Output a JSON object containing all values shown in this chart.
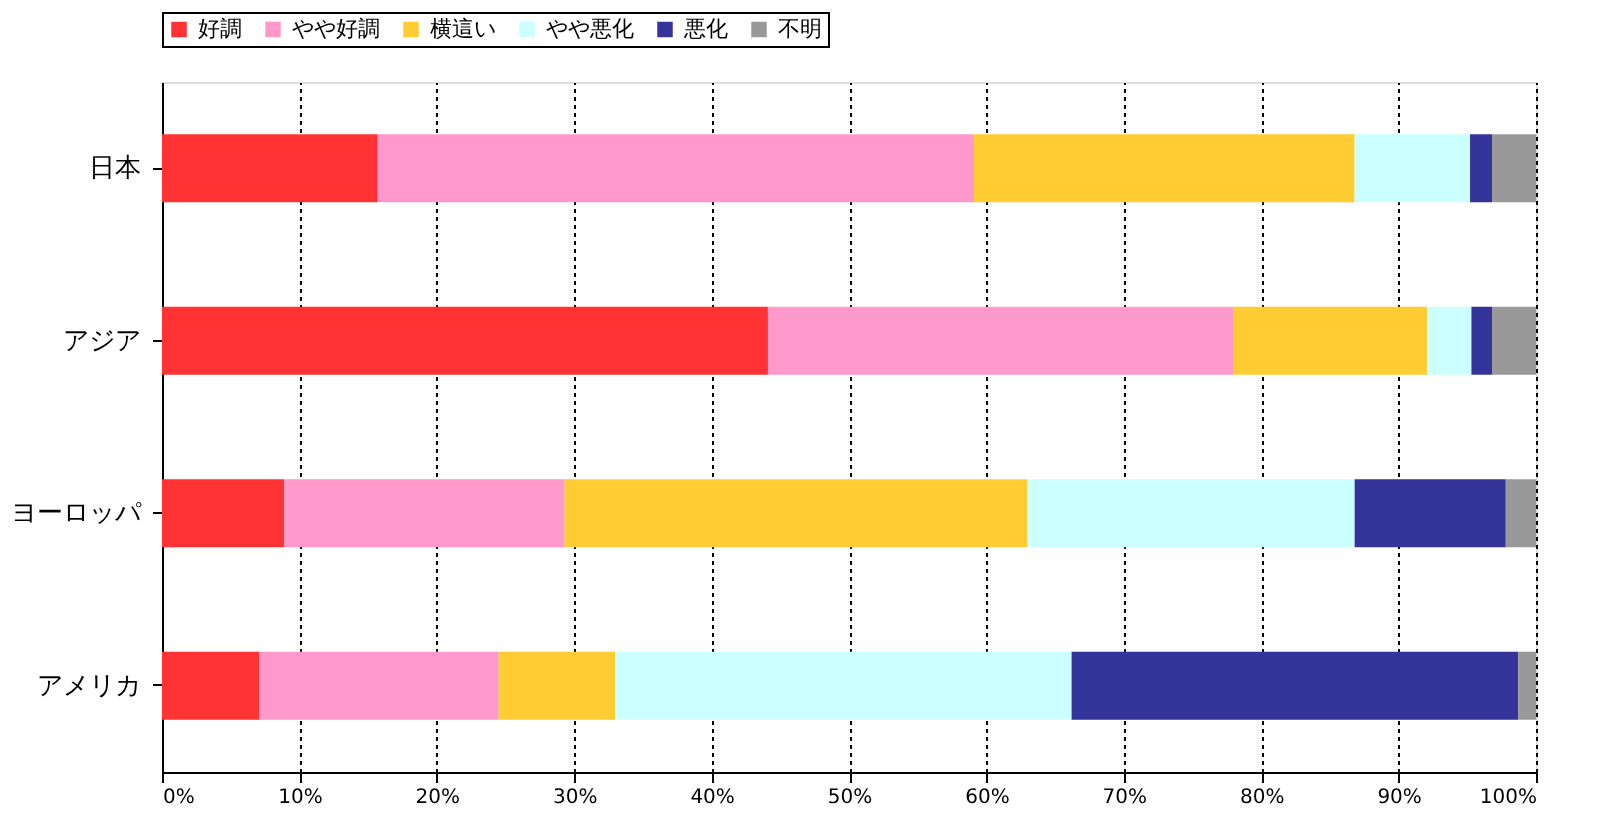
{
  "chart_data": {
    "type": "bar",
    "orientation": "horizontal",
    "stacked": true,
    "categories": [
      "日本",
      "アジア",
      "ヨーロッパ",
      "アメリカ"
    ],
    "series": [
      {
        "name": "好調",
        "color": "#ff3333",
        "values": [
          15.7,
          44.1,
          8.9,
          7.1
        ]
      },
      {
        "name": "やや好調",
        "color": "#ff99cc",
        "values": [
          43.4,
          33.9,
          20.4,
          17.4
        ]
      },
      {
        "name": "横這い",
        "color": "#ffcc33",
        "values": [
          27.7,
          14.1,
          33.7,
          8.5
        ]
      },
      {
        "name": "やや悪化",
        "color": "#ccffff",
        "values": [
          8.4,
          3.2,
          23.8,
          33.2
        ]
      },
      {
        "name": "悪化",
        "color": "#333399",
        "values": [
          1.6,
          1.5,
          11.0,
          32.5
        ]
      },
      {
        "name": "不明",
        "color": "#999999",
        "values": [
          3.2,
          3.2,
          2.2,
          1.3
        ]
      }
    ],
    "xlim": [
      0,
      100
    ],
    "xticks": [
      {
        "value": 0,
        "label": "0%"
      },
      {
        "value": 10,
        "label": "10%"
      },
      {
        "value": 20,
        "label": "20%"
      },
      {
        "value": 30,
        "label": "30%"
      },
      {
        "value": 40,
        "label": "40%"
      },
      {
        "value": 50,
        "label": "50%"
      },
      {
        "value": 60,
        "label": "60%"
      },
      {
        "value": 70,
        "label": "70%"
      },
      {
        "value": 80,
        "label": "80%"
      },
      {
        "value": 90,
        "label": "90%"
      },
      {
        "value": 100,
        "label": "100%"
      }
    ],
    "grid": "x",
    "legend": "top"
  }
}
